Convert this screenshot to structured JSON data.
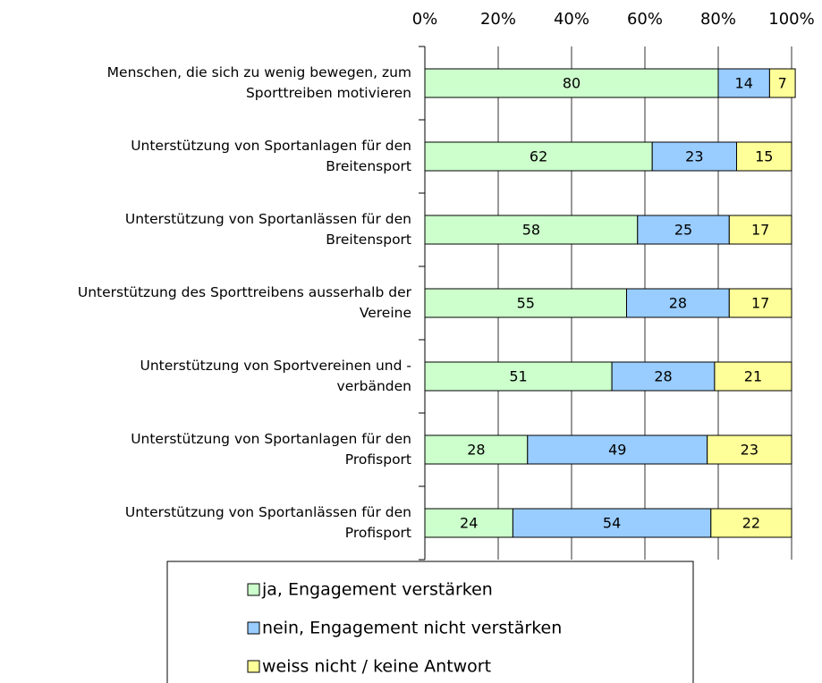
{
  "chart_data": {
    "type": "stacked-bar-horizontal",
    "categories": [
      "Menschen, die sich zu wenig bewegen, zum\nSporttreiben motivieren",
      "Unterstützung von Sportanlagen für den\nBreitensport",
      "Unterstützung von Sportanlässen für den\nBreitensport",
      "Unterstützung des Sporttreibens ausserhalb der\nVereine",
      "Unterstützung von Sportvereinen und -\nverbänden",
      "Unterstützung von Sportanlagen für den\nProfisport",
      "Unterstützung von Sportanlässen für den\nProfisport"
    ],
    "series": [
      {
        "name": "ja, Engagement verstärken",
        "color": "#ccffcc",
        "values": [
          80,
          62,
          58,
          55,
          51,
          28,
          24
        ]
      },
      {
        "name": "nein, Engagement nicht verstärken",
        "color": "#99ccff",
        "values": [
          14,
          23,
          25,
          28,
          28,
          49,
          54
        ]
      },
      {
        "name": "weiss nicht / keine Antwort",
        "color": "#ffff99",
        "values": [
          7,
          15,
          17,
          17,
          21,
          23,
          22
        ]
      }
    ],
    "xlim": [
      0,
      100
    ],
    "xticks": [
      {
        "value": 0,
        "label": "0%"
      },
      {
        "value": 20,
        "label": "20%"
      },
      {
        "value": 40,
        "label": "40%"
      },
      {
        "value": 60,
        "label": "60%"
      },
      {
        "value": 80,
        "label": "80%"
      },
      {
        "value": 100,
        "label": "100%"
      }
    ],
    "grid": true
  }
}
